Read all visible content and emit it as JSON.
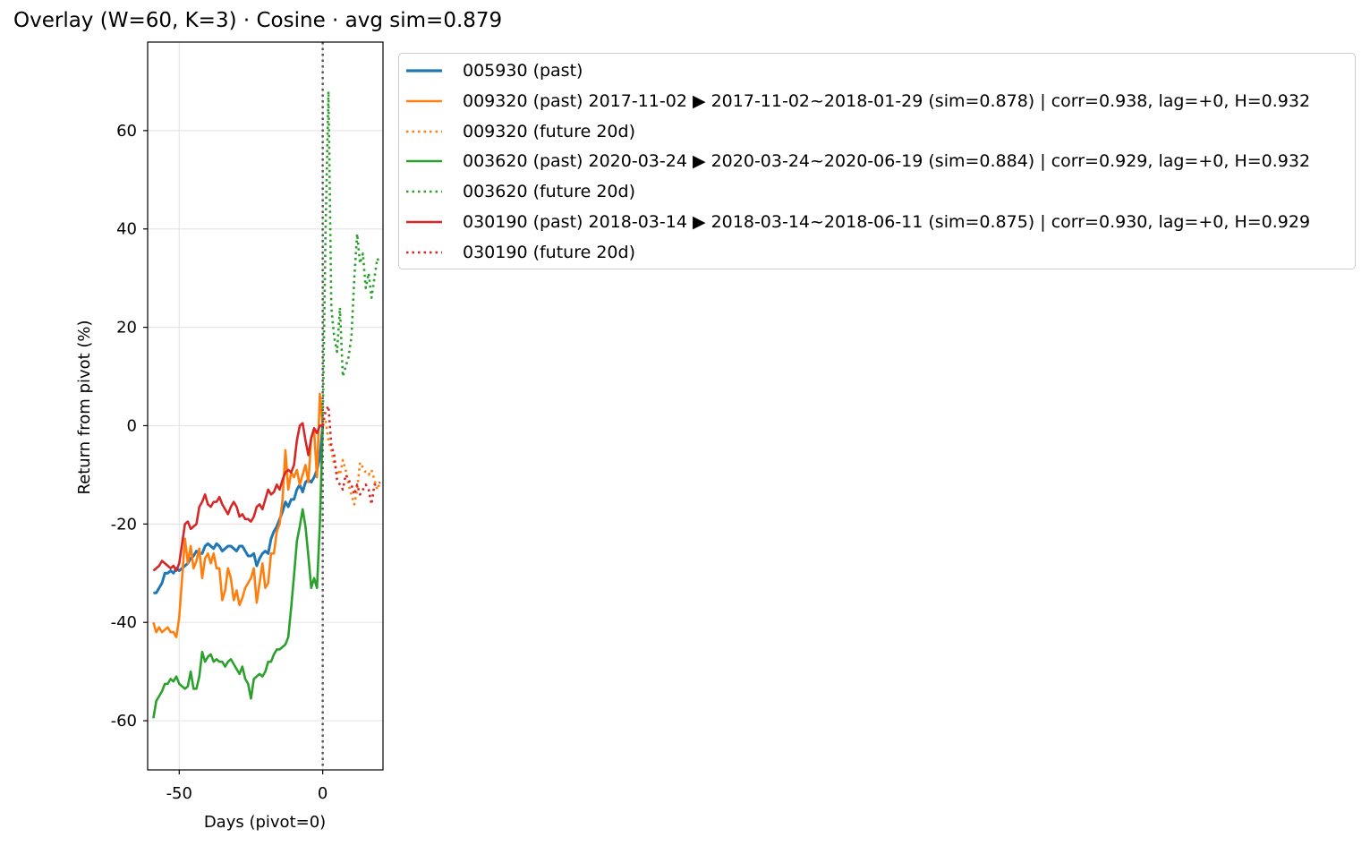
{
  "chart_data": {
    "type": "line",
    "title": "Overlay (W=60, K=3) · Cosine · avg sim=0.879",
    "xlabel": "Days (pivot=0)",
    "ylabel": "Return from pivot (%)",
    "xlim": [
      -61,
      21
    ],
    "ylim": [
      -70,
      78
    ],
    "xticks": [
      -50,
      0
    ],
    "xtick_labels": [
      "-50",
      "0"
    ],
    "yticks": [
      -60,
      -40,
      -20,
      0,
      20,
      40,
      60
    ],
    "ytick_labels": [
      "-60",
      "-40",
      "-20",
      "0",
      "20",
      "40",
      "60"
    ],
    "grid": true,
    "legend_position": "outside-upper-right",
    "pivot_line": {
      "x": 0,
      "style": "dotted",
      "color": "#555555"
    },
    "series": [
      {
        "name": "005930 (past)",
        "color": "#1f77b4",
        "style": "solid",
        "x": [
          -59,
          -58,
          -57,
          -56,
          -55,
          -54,
          -53,
          -52,
          -51,
          -50,
          -49,
          -48,
          -47,
          -46,
          -45,
          -44,
          -43,
          -42,
          -41,
          -40,
          -39,
          -38,
          -37,
          -36,
          -35,
          -34,
          -33,
          -32,
          -31,
          -30,
          -29,
          -28,
          -27,
          -26,
          -25,
          -24,
          -23,
          -22,
          -21,
          -20,
          -19,
          -18,
          -17,
          -16,
          -15,
          -14,
          -13,
          -12,
          -11,
          -10,
          -9,
          -8,
          -7,
          -6,
          -5,
          -4,
          -3,
          -2,
          -1,
          0
        ],
        "y": [
          -34,
          -34,
          -33,
          -32,
          -30,
          -30,
          -29.5,
          -30,
          -29,
          -29.5,
          -29,
          -28.5,
          -28,
          -27,
          -26.5,
          -25.5,
          -26,
          -26,
          -24.5,
          -24,
          -24.5,
          -25,
          -24,
          -24.5,
          -25.5,
          -25,
          -24.5,
          -24.5,
          -25,
          -25.5,
          -24.5,
          -24.5,
          -25.5,
          -26.5,
          -26.5,
          -26,
          -28.5,
          -27,
          -26,
          -25.5,
          -26,
          -23,
          -21.5,
          -20.5,
          -19,
          -17.5,
          -15.5,
          -16.5,
          -15,
          -15,
          -13,
          -12,
          -13.5,
          -11.5,
          -11,
          -11.5,
          -10.5,
          -9,
          -6.5,
          0
        ]
      },
      {
        "name": "009320 (past) 2017-11-02 ▶ 2017-11-02~2018-01-29 (sim=0.878) | corr=0.938, lag=+0, H=0.932",
        "color": "#ff7f0e",
        "style": "solid",
        "x": [
          -59,
          -58,
          -57,
          -56,
          -55,
          -54,
          -53,
          -52,
          -51,
          -50,
          -49,
          -48,
          -47,
          -46,
          -45,
          -44,
          -43,
          -42,
          -41,
          -40,
          -39,
          -38,
          -37,
          -36,
          -35,
          -34,
          -33,
          -32,
          -31,
          -30,
          -29,
          -28,
          -27,
          -26,
          -25,
          -24,
          -23,
          -22,
          -21,
          -20,
          -19,
          -18,
          -17,
          -16,
          -15,
          -14,
          -13,
          -12,
          -11,
          -10,
          -9,
          -8,
          -7,
          -6,
          -5,
          -4,
          -3,
          -2,
          -1,
          0
        ],
        "y": [
          -40,
          -42,
          -41,
          -42,
          -41.5,
          -41,
          -42,
          -42,
          -43,
          -39,
          -31,
          -23,
          -28,
          -24.5,
          -29,
          -27.5,
          -25,
          -31,
          -27,
          -26,
          -28,
          -26,
          -29,
          -29,
          -35.5,
          -33.5,
          -29,
          -31,
          -35.5,
          -33.5,
          -36.5,
          -35,
          -33,
          -32,
          -31,
          -29,
          -36,
          -32,
          -28,
          -33,
          -32,
          -26,
          -26,
          -21.5,
          -20,
          -15,
          -5,
          -13,
          -9.5,
          -10.5,
          -9,
          -12,
          -10,
          -8,
          -11.5,
          -2.5,
          -1,
          -10.5,
          6.5,
          0
        ]
      },
      {
        "name": "009320 (future 20d)",
        "color": "#ff7f0e",
        "style": "dotted",
        "x": [
          0,
          1,
          2,
          3,
          4,
          5,
          6,
          7,
          8,
          9,
          10,
          11,
          12,
          13,
          14,
          15,
          16,
          17,
          18,
          19,
          20
        ],
        "y": [
          0,
          1,
          -3,
          -5,
          -8,
          -9,
          -10,
          -7,
          -9,
          -12,
          -14,
          -16,
          -13,
          -7.5,
          -8.5,
          -9.5,
          -10,
          -9,
          -11,
          -13,
          -11.5
        ]
      },
      {
        "name": "003620 (past) 2020-03-24 ▶ 2020-03-24~2020-06-19 (sim=0.884) | corr=0.929, lag=+0, H=0.932",
        "color": "#2ca02c",
        "style": "solid",
        "x": [
          -59,
          -58,
          -57,
          -56,
          -55,
          -54,
          -53,
          -52,
          -51,
          -50,
          -49,
          -48,
          -47,
          -46,
          -45,
          -44,
          -43,
          -42,
          -41,
          -40,
          -39,
          -38,
          -37,
          -36,
          -35,
          -34,
          -33,
          -32,
          -31,
          -30,
          -29,
          -28,
          -27,
          -26,
          -25,
          -24,
          -23,
          -22,
          -21,
          -20,
          -19,
          -18,
          -17,
          -16,
          -15,
          -14,
          -13,
          -12,
          -11,
          -10,
          -9,
          -8,
          -7,
          -6,
          -5,
          -4,
          -3,
          -2,
          -1,
          0
        ],
        "y": [
          -59.5,
          -56,
          -55,
          -54,
          -52.5,
          -52.5,
          -51.5,
          -52,
          -51,
          -52.5,
          -53,
          -53.5,
          -53,
          -50,
          -53.5,
          -53.5,
          -51,
          -46,
          -48,
          -47,
          -46.5,
          -48,
          -47.5,
          -48,
          -48,
          -49,
          -48,
          -47.5,
          -48.5,
          -49.5,
          -50.5,
          -49,
          -51.5,
          -52.5,
          -55.5,
          -51.5,
          -51,
          -50.5,
          -51,
          -50,
          -48,
          -48,
          -46.5,
          -45.5,
          -45.5,
          -45,
          -44.5,
          -43,
          -37,
          -30.5,
          -23.5,
          -20.5,
          -17,
          -20.5,
          -26.5,
          -33,
          -31,
          -33,
          -20,
          0
        ]
      },
      {
        "name": "003620 (future 20d)",
        "color": "#2ca02c",
        "style": "dotted",
        "x": [
          0,
          1,
          2,
          3,
          4,
          5,
          6,
          7,
          8,
          9,
          10,
          11,
          12,
          13,
          14,
          15,
          16,
          17,
          18,
          19,
          20
        ],
        "y": [
          0,
          40,
          68,
          24,
          18,
          15,
          24,
          10,
          12,
          14,
          18,
          30,
          39,
          33,
          35,
          28,
          31,
          26,
          30,
          34,
          33
        ]
      },
      {
        "name": "030190 (past) 2018-03-14 ▶ 2018-03-14~2018-06-11 (sim=0.875) | corr=0.930, lag=+0, H=0.929",
        "color": "#d62728",
        "style": "solid",
        "x": [
          -59,
          -58,
          -57,
          -56,
          -55,
          -54,
          -53,
          -52,
          -51,
          -50,
          -49,
          -48,
          -47,
          -46,
          -45,
          -44,
          -43,
          -42,
          -41,
          -40,
          -39,
          -38,
          -37,
          -36,
          -35,
          -34,
          -33,
          -32,
          -31,
          -30,
          -29,
          -28,
          -27,
          -26,
          -25,
          -24,
          -23,
          -22,
          -21,
          -20,
          -19,
          -18,
          -17,
          -16,
          -15,
          -14,
          -13,
          -12,
          -11,
          -10,
          -9,
          -8,
          -7,
          -6,
          -5,
          -4,
          -3,
          -2,
          -1,
          0
        ],
        "y": [
          -29.5,
          -29,
          -28.5,
          -27.5,
          -28,
          -28.5,
          -29,
          -28.5,
          -29.5,
          -28,
          -24,
          -20,
          -19.5,
          -21,
          -20.5,
          -20,
          -16.5,
          -15.5,
          -14,
          -16,
          -16.5,
          -15.5,
          -15.5,
          -14.5,
          -16,
          -17,
          -18,
          -16.5,
          -15.5,
          -16.5,
          -18.5,
          -18,
          -19,
          -19,
          -19.5,
          -18.5,
          -16.5,
          -16,
          -17,
          -15,
          -13,
          -14,
          -13.5,
          -12,
          -13,
          -11,
          -9.5,
          -9,
          -9.5,
          -8,
          -3,
          0,
          0.5,
          -3,
          -6,
          -2.5,
          -0.5,
          -1.5,
          0,
          0
        ]
      },
      {
        "name": "030190 (future 20d)",
        "color": "#d62728",
        "style": "dotted",
        "x": [
          0,
          1,
          2,
          3,
          4,
          5,
          6,
          7,
          8,
          9,
          10,
          11,
          12,
          13,
          14,
          15,
          16,
          17,
          18,
          19,
          20
        ],
        "y": [
          0,
          3,
          4,
          -4,
          -6,
          -11,
          -12,
          -13,
          -10,
          -11,
          -12,
          -14,
          -12,
          -14,
          -13,
          -12,
          -13,
          -16,
          -12,
          -12,
          -11.5
        ]
      }
    ]
  }
}
